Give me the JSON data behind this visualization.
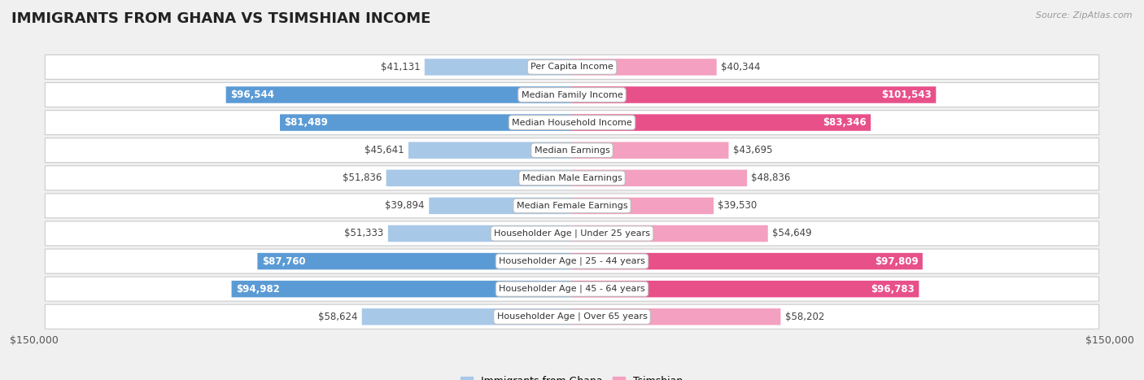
{
  "title": "IMMIGRANTS FROM GHANA VS TSIMSHIAN INCOME",
  "source": "Source: ZipAtlas.com",
  "categories": [
    "Per Capita Income",
    "Median Family Income",
    "Median Household Income",
    "Median Earnings",
    "Median Male Earnings",
    "Median Female Earnings",
    "Householder Age | Under 25 years",
    "Householder Age | 25 - 44 years",
    "Householder Age | 45 - 64 years",
    "Householder Age | Over 65 years"
  ],
  "ghana_values": [
    41131,
    96544,
    81489,
    45641,
    51836,
    39894,
    51333,
    87760,
    94982,
    58624
  ],
  "tsimshian_values": [
    40344,
    101543,
    83346,
    43695,
    48836,
    39530,
    54649,
    97809,
    96783,
    58202
  ],
  "ghana_labels": [
    "$41,131",
    "$96,544",
    "$81,489",
    "$45,641",
    "$51,836",
    "$39,894",
    "$51,333",
    "$87,760",
    "$94,982",
    "$58,624"
  ],
  "tsimshian_labels": [
    "$40,344",
    "$101,543",
    "$83,346",
    "$43,695",
    "$48,836",
    "$39,530",
    "$54,649",
    "$97,809",
    "$96,783",
    "$58,202"
  ],
  "ghana_color_light": "#a8c8e8",
  "ghana_color_dark": "#5b9bd5",
  "tsimshian_color_light": "#f4a0c0",
  "tsimshian_color_dark": "#e8508a",
  "ghana_label_threshold": 80000,
  "tsimshian_label_threshold": 80000,
  "xlim": 150000,
  "bar_height": 0.6,
  "background_color": "#f0f0f0",
  "row_bg_color": "#ffffff",
  "row_alt_color": "#f5f5f5",
  "legend_ghana": "Immigrants from Ghana",
  "legend_tsimshian": "Tsimshian",
  "xlabel_left": "$150,000",
  "xlabel_right": "$150,000",
  "title_fontsize": 13,
  "label_fontsize": 8.5,
  "category_fontsize": 8,
  "source_fontsize": 8
}
